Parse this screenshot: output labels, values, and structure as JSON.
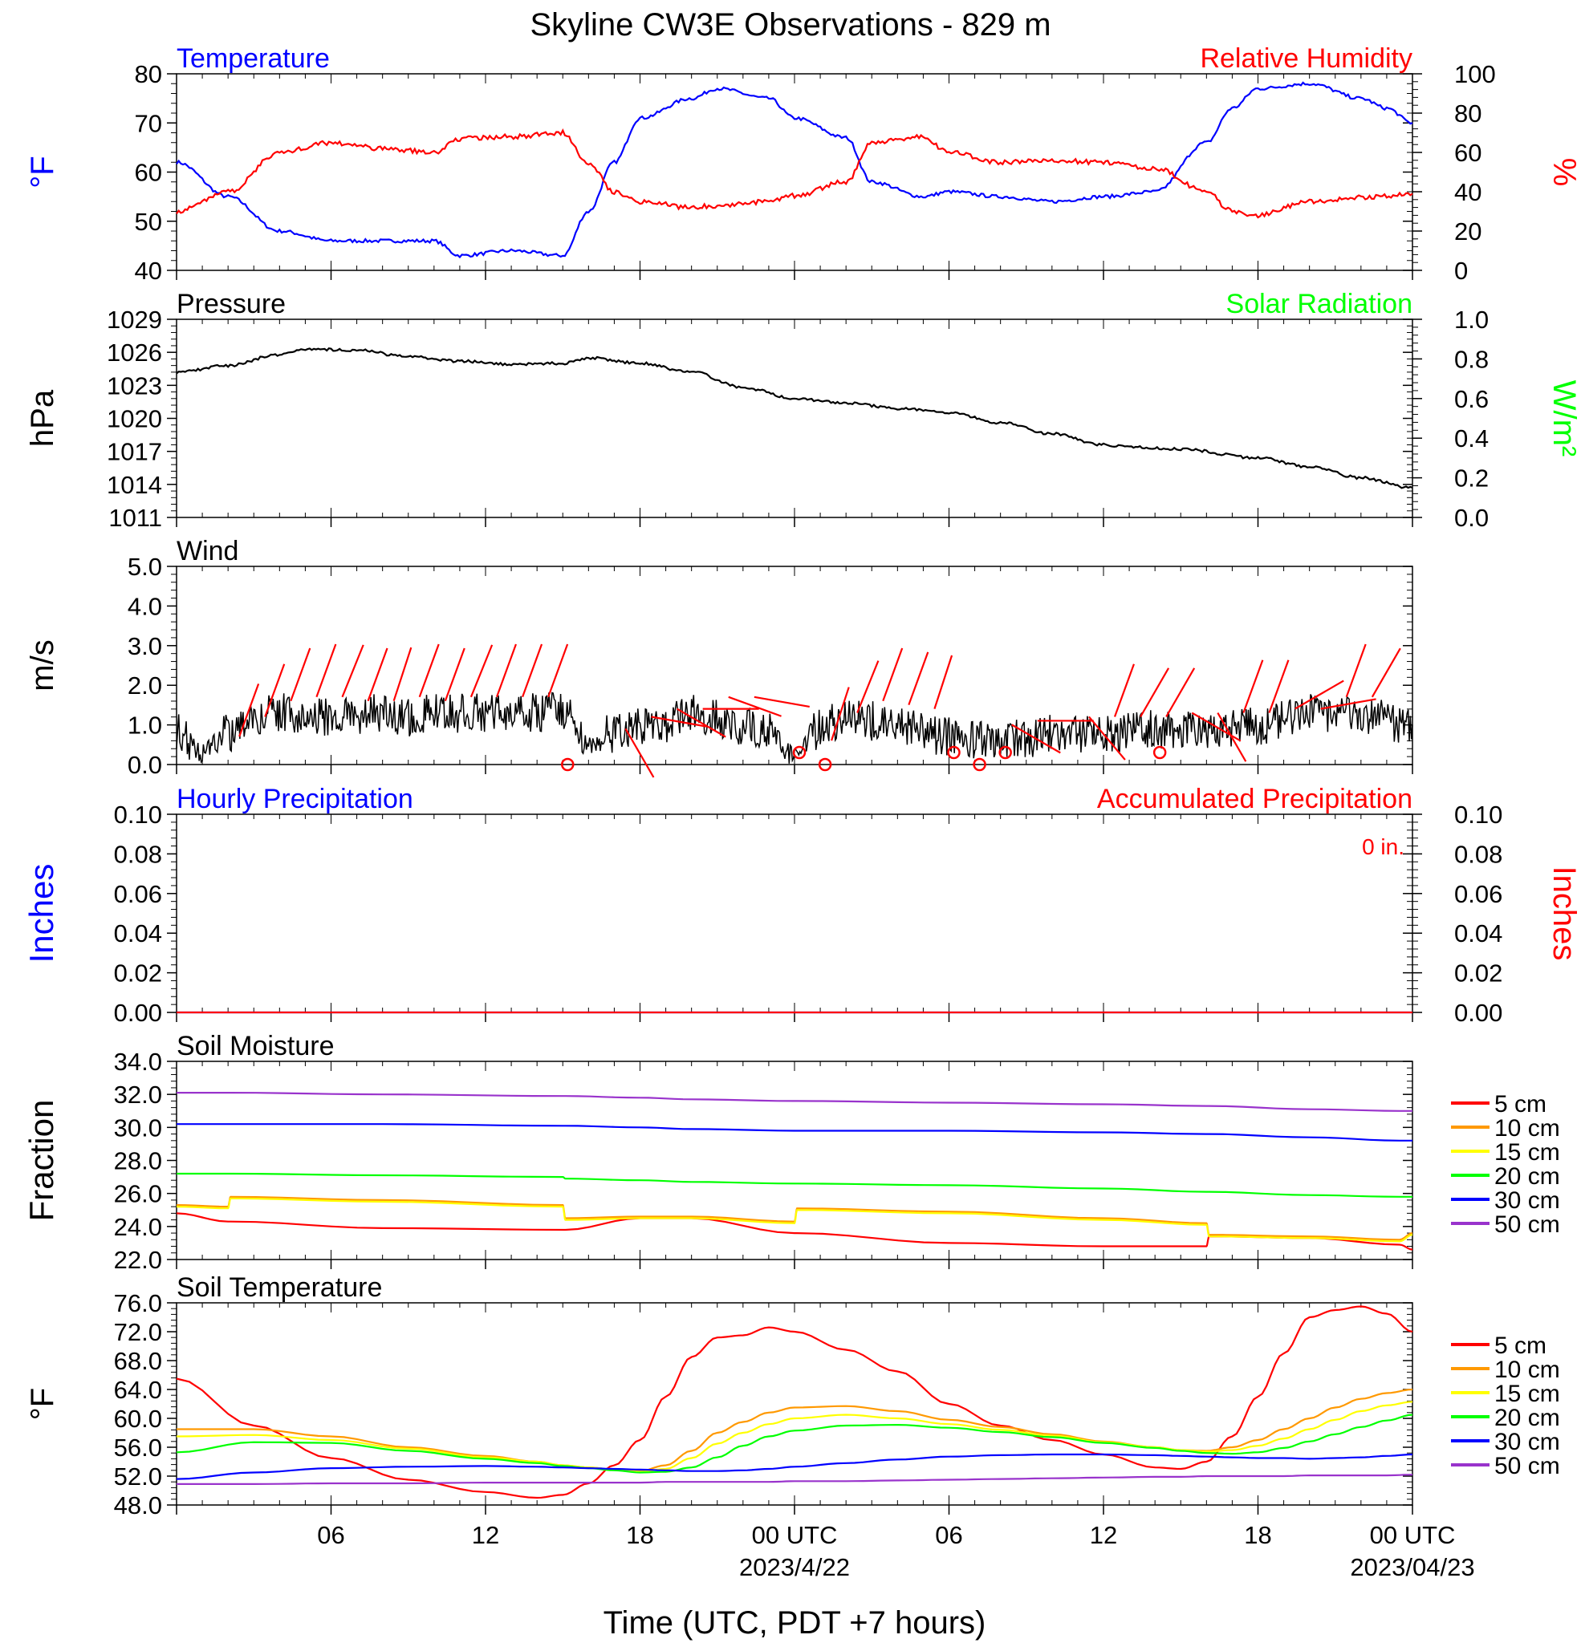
{
  "title": "Skyline CW3E Observations - 829 m",
  "x_axis": {
    "label": "Time (UTC, PDT +7 hours)",
    "ticks": [
      "06",
      "12",
      "18",
      "00 UTC",
      "06",
      "12",
      "18",
      "00 UTC"
    ],
    "dates": [
      "2023/4/22",
      "2023/04/23"
    ]
  },
  "colors": {
    "temperature": "#0000ff",
    "humidity": "#ff0000",
    "pressure": "#000000",
    "solar": "#00ff00",
    "wind": "#000000",
    "barb": "#ff0000",
    "d5": "#ff0000",
    "d10": "#ff9900",
    "d15": "#ffff00",
    "d20": "#00ff00",
    "d30": "#0000ff",
    "d50": "#9933cc"
  },
  "chart_data": [
    {
      "type": "line",
      "panel": "temperature-humidity",
      "left_title": "Temperature",
      "right_title": "Relative Humidity",
      "ylabel_left": "°F",
      "ylabel_right": "%",
      "ylim_left": [
        40,
        80
      ],
      "ylim_right": [
        0,
        100
      ],
      "yticks_left": [
        "40",
        "50",
        "60",
        "70",
        "80"
      ],
      "yticks_right": [
        "0",
        "20",
        "40",
        "60",
        "80",
        "100"
      ],
      "x_hours": [
        0,
        2,
        4,
        6,
        8,
        10,
        11,
        13,
        15,
        16,
        17,
        18,
        20,
        21,
        23,
        24,
        26,
        27,
        29,
        30,
        32,
        34,
        36,
        38,
        40,
        41,
        42,
        44,
        46,
        47,
        48
      ],
      "series": [
        {
          "name": "Temperature",
          "values": [
            62,
            55,
            48,
            46,
            46,
            46,
            43,
            44,
            43,
            52,
            62,
            71,
            75,
            77,
            75,
            71,
            67,
            58,
            55,
            56,
            55,
            54,
            55,
            56,
            66,
            73,
            77,
            78,
            75,
            73,
            70
          ]
        },
        {
          "name": "Relative Humidity",
          "values": [
            30,
            40,
            60,
            65,
            62,
            60,
            67,
            68,
            70,
            55,
            40,
            35,
            32,
            33,
            35,
            38,
            45,
            65,
            68,
            60,
            55,
            56,
            55,
            52,
            40,
            30,
            28,
            35,
            37,
            38,
            39
          ]
        }
      ]
    },
    {
      "type": "line",
      "panel": "pressure-solar",
      "left_title": "Pressure",
      "right_title": "Solar Radiation",
      "ylabel_left": "hPa",
      "ylabel_right": "W/m²",
      "ylim_left": [
        1011,
        1029
      ],
      "ylim_right": [
        0,
        1
      ],
      "yticks_left": [
        "1011",
        "1014",
        "1017",
        "1020",
        "1023",
        "1026",
        "1029"
      ],
      "yticks_right": [
        "0.0",
        "0.2",
        "0.4",
        "0.6",
        "0.8",
        "1.0"
      ],
      "x_hours": [
        0,
        2,
        4,
        5,
        7,
        9,
        11,
        13,
        15,
        16,
        18,
        20,
        22,
        24,
        26,
        28,
        30,
        32,
        34,
        36,
        37,
        39,
        42,
        44,
        46,
        48
      ],
      "series": [
        {
          "name": "Pressure",
          "values": [
            1024.2,
            1024.8,
            1025.8,
            1026.3,
            1026.2,
            1025.6,
            1025.2,
            1024.9,
            1025.0,
            1025.5,
            1025.0,
            1024.2,
            1022.8,
            1021.8,
            1021.4,
            1020.9,
            1020.5,
            1019.6,
            1018.6,
            1017.6,
            1017.4,
            1017.2,
            1016.4,
            1015.6,
            1014.6,
            1013.7
          ]
        }
      ]
    },
    {
      "type": "line",
      "panel": "wind",
      "left_title": "Wind",
      "ylabel_left": "m/s",
      "ylim_left": [
        0,
        5
      ],
      "yticks_left": [
        "0.0",
        "1.0",
        "2.0",
        "3.0",
        "4.0",
        "5.0"
      ],
      "x_hours": [
        0,
        1,
        2,
        3,
        4,
        6,
        8,
        9,
        10,
        12,
        14,
        15,
        15.5,
        16,
        17,
        18,
        19,
        20,
        22,
        23,
        24,
        25,
        26,
        27,
        28,
        30,
        31,
        32,
        33,
        34,
        36,
        38,
        40,
        42,
        44,
        46,
        48
      ],
      "series": [
        {
          "name": "Wind speed",
          "values": [
            0.9,
            0.3,
            0.8,
            1.2,
            1.3,
            1.2,
            1.3,
            1.2,
            1.3,
            1.3,
            1.3,
            1.4,
            1.0,
            0.5,
            0.8,
            1.0,
            1.0,
            1.3,
            1.0,
            0.8,
            0.2,
            0.9,
            1.2,
            1.1,
            1.0,
            0.7,
            0.6,
            0.7,
            0.6,
            0.8,
            0.8,
            0.9,
            0.9,
            1.0,
            1.3,
            1.2,
            1.0
          ]
        }
      ],
      "barb_hours": [
        2,
        3,
        4,
        5,
        6,
        7,
        8,
        9,
        10,
        11,
        12,
        13,
        14,
        17,
        18,
        19,
        20,
        21,
        22,
        25,
        26,
        27,
        28,
        29,
        32,
        33,
        35,
        36,
        37,
        38,
        39,
        40,
        41,
        42,
        43,
        44,
        45,
        46
      ],
      "calm_hours": [
        15,
        24,
        25,
        30,
        31,
        32,
        38
      ]
    },
    {
      "type": "line",
      "panel": "precipitation",
      "left_title": "Hourly Precipitation",
      "right_title": "Accumulated Precipitation",
      "annotation": "0 in.",
      "ylabel_left": "Inches",
      "ylabel_right": "Inches",
      "ylim_left": [
        0,
        0.1
      ],
      "ylim_right": [
        0,
        0.1
      ],
      "yticks_left": [
        "0.00",
        "0.02",
        "0.04",
        "0.06",
        "0.08",
        "0.10"
      ],
      "yticks_right": [
        "0.00",
        "0.02",
        "0.04",
        "0.06",
        "0.08",
        "0.10"
      ],
      "x_hours": [
        0,
        48
      ],
      "series": [
        {
          "name": "Hourly Precipitation",
          "values": [
            0,
            0
          ]
        },
        {
          "name": "Accumulated Precipitation",
          "values": [
            0,
            0
          ]
        }
      ]
    },
    {
      "type": "line",
      "panel": "soil-moisture",
      "left_title": "Soil Moisture",
      "ylabel_left": "Fraction",
      "ylim_left": [
        22,
        34
      ],
      "yticks_left": [
        "22.0",
        "24.0",
        "26.0",
        "28.0",
        "30.0",
        "32.0",
        "34.0"
      ],
      "legend": [
        "5 cm",
        "10 cm",
        "15 cm",
        "20 cm",
        "30 cm",
        "50 cm"
      ],
      "x_hours": [
        0,
        2,
        2.1,
        8,
        15,
        15.1,
        18,
        20,
        24,
        24.1,
        30,
        36,
        40,
        40.1,
        44,
        47.5,
        48
      ],
      "series": [
        {
          "name": "5 cm",
          "values": [
            24.8,
            24.3,
            24.3,
            23.9,
            23.8,
            23.8,
            24.5,
            24.5,
            23.6,
            23.6,
            23.0,
            22.8,
            22.8,
            23.4,
            23.3,
            22.9,
            22.6
          ]
        },
        {
          "name": "10 cm",
          "values": [
            25.3,
            25.2,
            25.8,
            25.6,
            25.3,
            24.5,
            24.6,
            24.6,
            24.3,
            25.1,
            24.9,
            24.5,
            24.2,
            23.5,
            23.4,
            23.2,
            23.6
          ]
        },
        {
          "name": "15 cm",
          "values": [
            25.2,
            25.1,
            25.7,
            25.5,
            25.2,
            24.4,
            24.5,
            24.5,
            24.2,
            25.0,
            24.8,
            24.4,
            24.1,
            23.4,
            23.3,
            23.1,
            23.5
          ]
        },
        {
          "name": "20 cm",
          "values": [
            27.2,
            27.2,
            27.2,
            27.1,
            27.0,
            26.9,
            26.8,
            26.7,
            26.6,
            26.6,
            26.5,
            26.3,
            26.1,
            26.1,
            25.9,
            25.8,
            25.8
          ]
        },
        {
          "name": "30 cm",
          "values": [
            30.2,
            30.2,
            30.2,
            30.2,
            30.1,
            30.1,
            30.0,
            29.9,
            29.8,
            29.8,
            29.8,
            29.7,
            29.6,
            29.6,
            29.4,
            29.2,
            29.2
          ]
        },
        {
          "name": "50 cm",
          "values": [
            32.1,
            32.1,
            32.1,
            32.0,
            31.9,
            31.9,
            31.8,
            31.7,
            31.6,
            31.6,
            31.5,
            31.4,
            31.3,
            31.3,
            31.1,
            31.0,
            31.0
          ]
        }
      ]
    },
    {
      "type": "line",
      "panel": "soil-temperature",
      "left_title": "Soil Temperature",
      "ylabel_left": "°F",
      "ylim_left": [
        48,
        76
      ],
      "yticks_left": [
        "48.0",
        "52.0",
        "56.0",
        "60.0",
        "64.0",
        "68.0",
        "72.0",
        "76.0"
      ],
      "legend": [
        "5 cm",
        "10 cm",
        "15 cm",
        "20 cm",
        "30 cm",
        "50 cm"
      ],
      "x_hours": [
        0,
        3,
        6,
        9,
        12,
        14,
        15,
        16,
        17,
        18,
        19,
        20,
        21,
        22,
        23,
        24,
        26,
        28,
        30,
        32,
        34,
        36,
        38,
        39,
        40,
        41,
        42,
        43,
        44,
        45,
        46,
        47,
        48
      ],
      "series": [
        {
          "name": "5 cm",
          "values": [
            65.5,
            59,
            54.5,
            51.5,
            49.8,
            49,
            49.4,
            51,
            53.5,
            57,
            63,
            68.5,
            71.2,
            71.5,
            72.6,
            72,
            69.5,
            66.5,
            62,
            59,
            57,
            55,
            53.2,
            53,
            54,
            57.5,
            63,
            69,
            74,
            75,
            75.5,
            74.5,
            72
          ]
        },
        {
          "name": "10 cm",
          "values": [
            58.5,
            58.5,
            57.5,
            56,
            54.8,
            54,
            53.5,
            53.2,
            52.9,
            52.7,
            53.5,
            55.5,
            58,
            59.5,
            60.8,
            61.5,
            61.7,
            61,
            59.8,
            58.8,
            57.8,
            56.8,
            56,
            55.6,
            55.5,
            56,
            57,
            58.5,
            60,
            61.5,
            62.7,
            63.5,
            64
          ]
        },
        {
          "name": "15 cm",
          "values": [
            57.5,
            57.7,
            57,
            55.8,
            54.6,
            54,
            53.5,
            53.2,
            52.9,
            52.6,
            53,
            54.5,
            56.5,
            58,
            59.2,
            60,
            60.5,
            60,
            59.2,
            58.4,
            57.6,
            56.7,
            56,
            55.6,
            55.4,
            55.6,
            56.2,
            57.2,
            58.5,
            59.8,
            61,
            61.8,
            62.3
          ]
        },
        {
          "name": "20 cm",
          "values": [
            55.3,
            56.7,
            56.6,
            55.5,
            54.4,
            53.8,
            53.4,
            53.1,
            52.8,
            52.5,
            52.6,
            53.2,
            54.6,
            56.2,
            57.5,
            58.3,
            59,
            59.1,
            58.7,
            58.1,
            57.4,
            56.6,
            55.9,
            55.5,
            55.2,
            55.1,
            55.3,
            55.9,
            56.8,
            57.8,
            58.8,
            59.7,
            60.5
          ]
        },
        {
          "name": "30 cm",
          "values": [
            51.6,
            52.5,
            53.1,
            53.3,
            53.4,
            53.3,
            53.2,
            53.1,
            53.0,
            52.9,
            52.8,
            52.7,
            52.7,
            52.8,
            53.0,
            53.3,
            53.8,
            54.3,
            54.7,
            54.9,
            55.0,
            55.0,
            54.9,
            54.8,
            54.7,
            54.6,
            54.5,
            54.5,
            54.4,
            54.5,
            54.6,
            54.8,
            55.0
          ]
        },
        {
          "name": "50 cm",
          "values": [
            50.9,
            50.9,
            51.0,
            51.0,
            51.1,
            51.1,
            51.1,
            51.1,
            51.1,
            51.1,
            51.2,
            51.2,
            51.2,
            51.2,
            51.2,
            51.3,
            51.3,
            51.4,
            51.5,
            51.6,
            51.7,
            51.8,
            51.9,
            51.9,
            52.0,
            52.0,
            52.0,
            52.0,
            52.1,
            52.1,
            52.1,
            52.1,
            52.2
          ]
        }
      ]
    }
  ]
}
